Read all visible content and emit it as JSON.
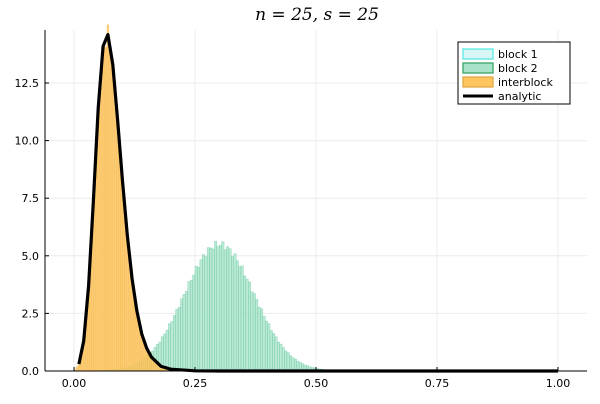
{
  "chart_data": {
    "type": "bar",
    "title": "n = 25, s = 25",
    "xlabel": "",
    "ylabel": "",
    "xlim": [
      -0.06,
      1.06
    ],
    "ylim": [
      0,
      14.8
    ],
    "xticks": [
      0.0,
      0.25,
      0.5,
      0.75,
      1.0
    ],
    "xtick_labels": [
      "0.00",
      "0.25",
      "0.50",
      "0.75",
      "1.00"
    ],
    "yticks": [
      0.0,
      2.5,
      5.0,
      7.5,
      10.0,
      12.5
    ],
    "ytick_labels": [
      "0.0",
      "2.5",
      "5.0",
      "7.5",
      "10.0",
      "12.5"
    ],
    "grid": true,
    "legend": {
      "position": "top-right"
    },
    "series": [
      {
        "name": "block 1",
        "kind": "histogram",
        "color": "#4de8e0",
        "shape": "approx. normal density, mean 0.30, sd 0.072",
        "bins": {
          "start": 0.0,
          "width": 0.005,
          "count": 120
        },
        "peak_density": 5.5
      },
      {
        "name": "block 2",
        "kind": "histogram",
        "color": "#2f9e5a",
        "fill": "#a7e3c9",
        "shape": "approx. normal density, mean 0.30, sd 0.072",
        "bins": {
          "start": 0.0,
          "width": 0.005,
          "count": 120
        },
        "peak_density": 5.5
      },
      {
        "name": "interblock",
        "kind": "histogram",
        "color": "#e0a53a",
        "fill": "#ffc561",
        "shape": "right-skewed density, mode 0.068",
        "bins": {
          "start": 0.0,
          "width": 0.004,
          "count": 70
        },
        "peak_density": 14.6
      },
      {
        "name": "analytic",
        "kind": "line",
        "color": "#000000",
        "x": [
          0.01,
          0.02,
          0.03,
          0.04,
          0.05,
          0.06,
          0.07,
          0.08,
          0.09,
          0.1,
          0.11,
          0.12,
          0.13,
          0.14,
          0.15,
          0.16,
          0.18,
          0.2,
          0.25,
          0.3,
          0.4,
          0.5,
          0.6,
          0.8,
          1.0
        ],
        "y": [
          0.3,
          1.3,
          3.7,
          7.4,
          11.4,
          14.1,
          14.6,
          13.3,
          10.9,
          8.3,
          5.9,
          4.0,
          2.6,
          1.6,
          1.0,
          0.6,
          0.2,
          0.08,
          0.01,
          0.0,
          0.0,
          0.0,
          0.0,
          0.0,
          0.0
        ]
      }
    ]
  }
}
